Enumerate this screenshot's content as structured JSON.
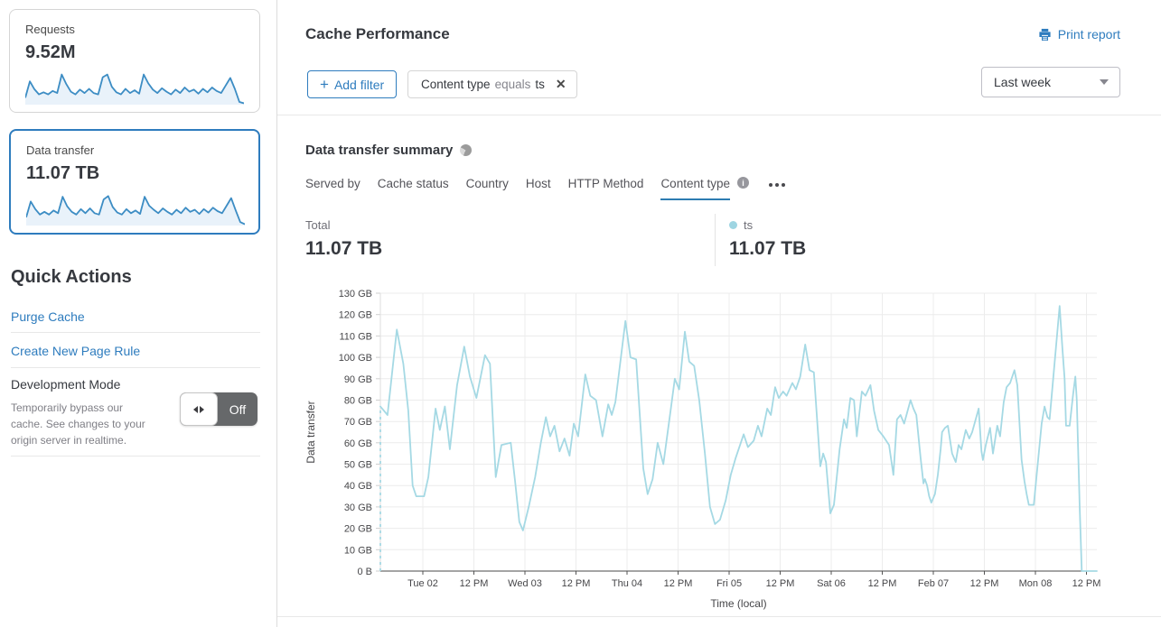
{
  "colors": {
    "accent_blue": "#2e7cbe",
    "tab_underline": "#2d7cb1",
    "chart_line": "#a5d9e4",
    "spark_line": "#3d8dc4",
    "spark_fill": "#e9f2fa",
    "legend_dot": "#9ed5e2",
    "toggle_track": "#66686a"
  },
  "sidebar": {
    "cards": [
      {
        "title": "Requests",
        "value": "9.52M",
        "selected": false,
        "spark": [
          20,
          68,
          45,
          30,
          36,
          30,
          40,
          34,
          88,
          60,
          38,
          30,
          44,
          34,
          46,
          34,
          30,
          80,
          88,
          52,
          36,
          30,
          46,
          34,
          42,
          32,
          88,
          62,
          44,
          34,
          48,
          38,
          30,
          44,
          34,
          50,
          38,
          44,
          32,
          46,
          36,
          50,
          40,
          34,
          56,
          78,
          46,
          8,
          4
        ]
      },
      {
        "title": "Data transfer",
        "value": "11.07 TB",
        "selected": true,
        "spark": [
          24,
          70,
          48,
          32,
          40,
          32,
          44,
          36,
          84,
          56,
          40,
          32,
          48,
          36,
          50,
          36,
          32,
          76,
          86,
          54,
          38,
          32,
          48,
          36,
          44,
          34,
          84,
          58,
          46,
          36,
          50,
          40,
          32,
          46,
          36,
          52,
          40,
          46,
          34,
          48,
          38,
          52,
          42,
          36,
          58,
          80,
          44,
          10,
          4
        ]
      }
    ],
    "quick_actions": {
      "heading": "Quick Actions",
      "links": [
        {
          "label": "Purge Cache"
        },
        {
          "label": "Create New Page Rule"
        }
      ],
      "dev_mode": {
        "title": "Development Mode",
        "description": "Temporarily bypass our\ncache. See changes to your\norigin server in realtime.",
        "toggle_state": "Off"
      }
    }
  },
  "header": {
    "title": "Cache Performance",
    "print_label": "Print report",
    "add_filter_plus": "+",
    "add_filter_label": "Add filter",
    "filter_chip": {
      "field": "Content type",
      "operator": "equals",
      "value": "ts",
      "close_glyph": "✕"
    },
    "time_range": "Last week"
  },
  "summary": {
    "title": "Data transfer summary",
    "tabs": [
      {
        "label": "Served by",
        "active": false
      },
      {
        "label": "Cache status",
        "active": false
      },
      {
        "label": "Country",
        "active": false
      },
      {
        "label": "Host",
        "active": false
      },
      {
        "label": "HTTP Method",
        "active": false
      },
      {
        "label": "Content type",
        "active": true,
        "has_info_icon": true
      }
    ],
    "stats": [
      {
        "label": "Total",
        "value": "11.07 TB",
        "has_dot": false
      },
      {
        "label": "ts",
        "value": "11.07 TB",
        "has_dot": true
      }
    ]
  },
  "chart_data": {
    "type": "line",
    "title": "Data transfer summary",
    "xlabel": "Time (local)",
    "ylabel": "Data transfer",
    "y_unit": "GB",
    "ylim": [
      0,
      130
    ],
    "y_tick_labels": [
      "0 B",
      "10 GB",
      "20 GB",
      "30 GB",
      "40 GB",
      "50 GB",
      "60 GB",
      "70 GB",
      "80 GB",
      "90 GB",
      "100 GB",
      "110 GB",
      "120 GB",
      "130 GB"
    ],
    "x_tick_labels": [
      "Tue 02",
      "12 PM",
      "Wed 03",
      "12 PM",
      "Thu 04",
      "12 PM",
      "Fri 05",
      "12 PM",
      "Sat 06",
      "12 PM",
      "Feb 07",
      "12 PM",
      "Mon 08",
      "12 PM"
    ],
    "legend": [
      {
        "name": "ts",
        "total": "11.07 TB"
      }
    ],
    "dashed_leadin": true,
    "series": [
      {
        "name": "ts",
        "points": [
          [
            0,
            77
          ],
          [
            0.01,
            73
          ],
          [
            0.023,
            113
          ],
          [
            0.032,
            97
          ],
          [
            0.039,
            75
          ],
          [
            0.045,
            40
          ],
          [
            0.05,
            35
          ],
          [
            0.061,
            35
          ],
          [
            0.067,
            44
          ],
          [
            0.077,
            76
          ],
          [
            0.083,
            66
          ],
          [
            0.09,
            77
          ],
          [
            0.097,
            57
          ],
          [
            0.107,
            87
          ],
          [
            0.117,
            105
          ],
          [
            0.125,
            91
          ],
          [
            0.134,
            81
          ],
          [
            0.146,
            101
          ],
          [
            0.153,
            97
          ],
          [
            0.161,
            44
          ],
          [
            0.169,
            59
          ],
          [
            0.182,
            60
          ],
          [
            0.188,
            42
          ],
          [
            0.194,
            23
          ],
          [
            0.199,
            19
          ],
          [
            0.207,
            30
          ],
          [
            0.216,
            44
          ],
          [
            0.224,
            60
          ],
          [
            0.231,
            72
          ],
          [
            0.237,
            63
          ],
          [
            0.243,
            68
          ],
          [
            0.25,
            56
          ],
          [
            0.257,
            62
          ],
          [
            0.264,
            54
          ],
          [
            0.27,
            69
          ],
          [
            0.276,
            63
          ],
          [
            0.286,
            92
          ],
          [
            0.293,
            82
          ],
          [
            0.301,
            80
          ],
          [
            0.31,
            63
          ],
          [
            0.318,
            78
          ],
          [
            0.323,
            73
          ],
          [
            0.328,
            79
          ],
          [
            0.342,
            117
          ],
          [
            0.349,
            100
          ],
          [
            0.357,
            99
          ],
          [
            0.367,
            48
          ],
          [
            0.373,
            36
          ],
          [
            0.38,
            43
          ],
          [
            0.387,
            60
          ],
          [
            0.395,
            50
          ],
          [
            0.405,
            75
          ],
          [
            0.411,
            90
          ],
          [
            0.417,
            85
          ],
          [
            0.425,
            112
          ],
          [
            0.431,
            98
          ],
          [
            0.438,
            96
          ],
          [
            0.445,
            80
          ],
          [
            0.453,
            55
          ],
          [
            0.46,
            30
          ],
          [
            0.467,
            22
          ],
          [
            0.474,
            24
          ],
          [
            0.482,
            33
          ],
          [
            0.489,
            45
          ],
          [
            0.496,
            53
          ],
          [
            0.507,
            64
          ],
          [
            0.513,
            58
          ],
          [
            0.521,
            61
          ],
          [
            0.527,
            68
          ],
          [
            0.532,
            63
          ],
          [
            0.54,
            76
          ],
          [
            0.545,
            73
          ],
          [
            0.551,
            86
          ],
          [
            0.556,
            81
          ],
          [
            0.562,
            84
          ],
          [
            0.567,
            82
          ],
          [
            0.575,
            88
          ],
          [
            0.58,
            85
          ],
          [
            0.586,
            91
          ],
          [
            0.593,
            106
          ],
          [
            0.599,
            94
          ],
          [
            0.605,
            93
          ],
          [
            0.614,
            49
          ],
          [
            0.618,
            55
          ],
          [
            0.622,
            51
          ],
          [
            0.628,
            27
          ],
          [
            0.633,
            31
          ],
          [
            0.641,
            57
          ],
          [
            0.647,
            71
          ],
          [
            0.651,
            67
          ],
          [
            0.656,
            81
          ],
          [
            0.661,
            80
          ],
          [
            0.665,
            63
          ],
          [
            0.672,
            84
          ],
          [
            0.677,
            82
          ],
          [
            0.684,
            87
          ],
          [
            0.689,
            75
          ],
          [
            0.695,
            66
          ],
          [
            0.702,
            63
          ],
          [
            0.71,
            59
          ],
          [
            0.716,
            45
          ],
          [
            0.721,
            71
          ],
          [
            0.726,
            73
          ],
          [
            0.731,
            69
          ],
          [
            0.74,
            80
          ],
          [
            0.744,
            76
          ],
          [
            0.748,
            73
          ],
          [
            0.754,
            53
          ],
          [
            0.758,
            41
          ],
          [
            0.76,
            43
          ],
          [
            0.763,
            40
          ],
          [
            0.766,
            35
          ],
          [
            0.769,
            32
          ],
          [
            0.774,
            36
          ],
          [
            0.778,
            45
          ],
          [
            0.782,
            57
          ],
          [
            0.784,
            65
          ],
          [
            0.788,
            67
          ],
          [
            0.792,
            68
          ],
          [
            0.798,
            55
          ],
          [
            0.803,
            51
          ],
          [
            0.807,
            59
          ],
          [
            0.811,
            57
          ],
          [
            0.815,
            63
          ],
          [
            0.817,
            66
          ],
          [
            0.822,
            62
          ],
          [
            0.826,
            65
          ],
          [
            0.835,
            76
          ],
          [
            0.839,
            56
          ],
          [
            0.841,
            52
          ],
          [
            0.845,
            59
          ],
          [
            0.851,
            67
          ],
          [
            0.855,
            55
          ],
          [
            0.861,
            68
          ],
          [
            0.865,
            63
          ],
          [
            0.87,
            79
          ],
          [
            0.874,
            86
          ],
          [
            0.879,
            88
          ],
          [
            0.885,
            94
          ],
          [
            0.889,
            87
          ],
          [
            0.895,
            52
          ],
          [
            0.899,
            42
          ],
          [
            0.902,
            36
          ],
          [
            0.905,
            31
          ],
          [
            0.912,
            31
          ],
          [
            0.918,
            52
          ],
          [
            0.923,
            69
          ],
          [
            0.927,
            77
          ],
          [
            0.931,
            72
          ],
          [
            0.934,
            71
          ],
          [
            0.948,
            124
          ],
          [
            0.952,
            104
          ],
          [
            0.955,
            90
          ],
          [
            0.957,
            68
          ],
          [
            0.962,
            68
          ],
          [
            0.967,
            83
          ],
          [
            0.97,
            91
          ],
          [
            0.972,
            80
          ],
          [
            0.976,
            30
          ],
          [
            0.979,
            0
          ],
          [
            1,
            0
          ]
        ]
      }
    ]
  }
}
